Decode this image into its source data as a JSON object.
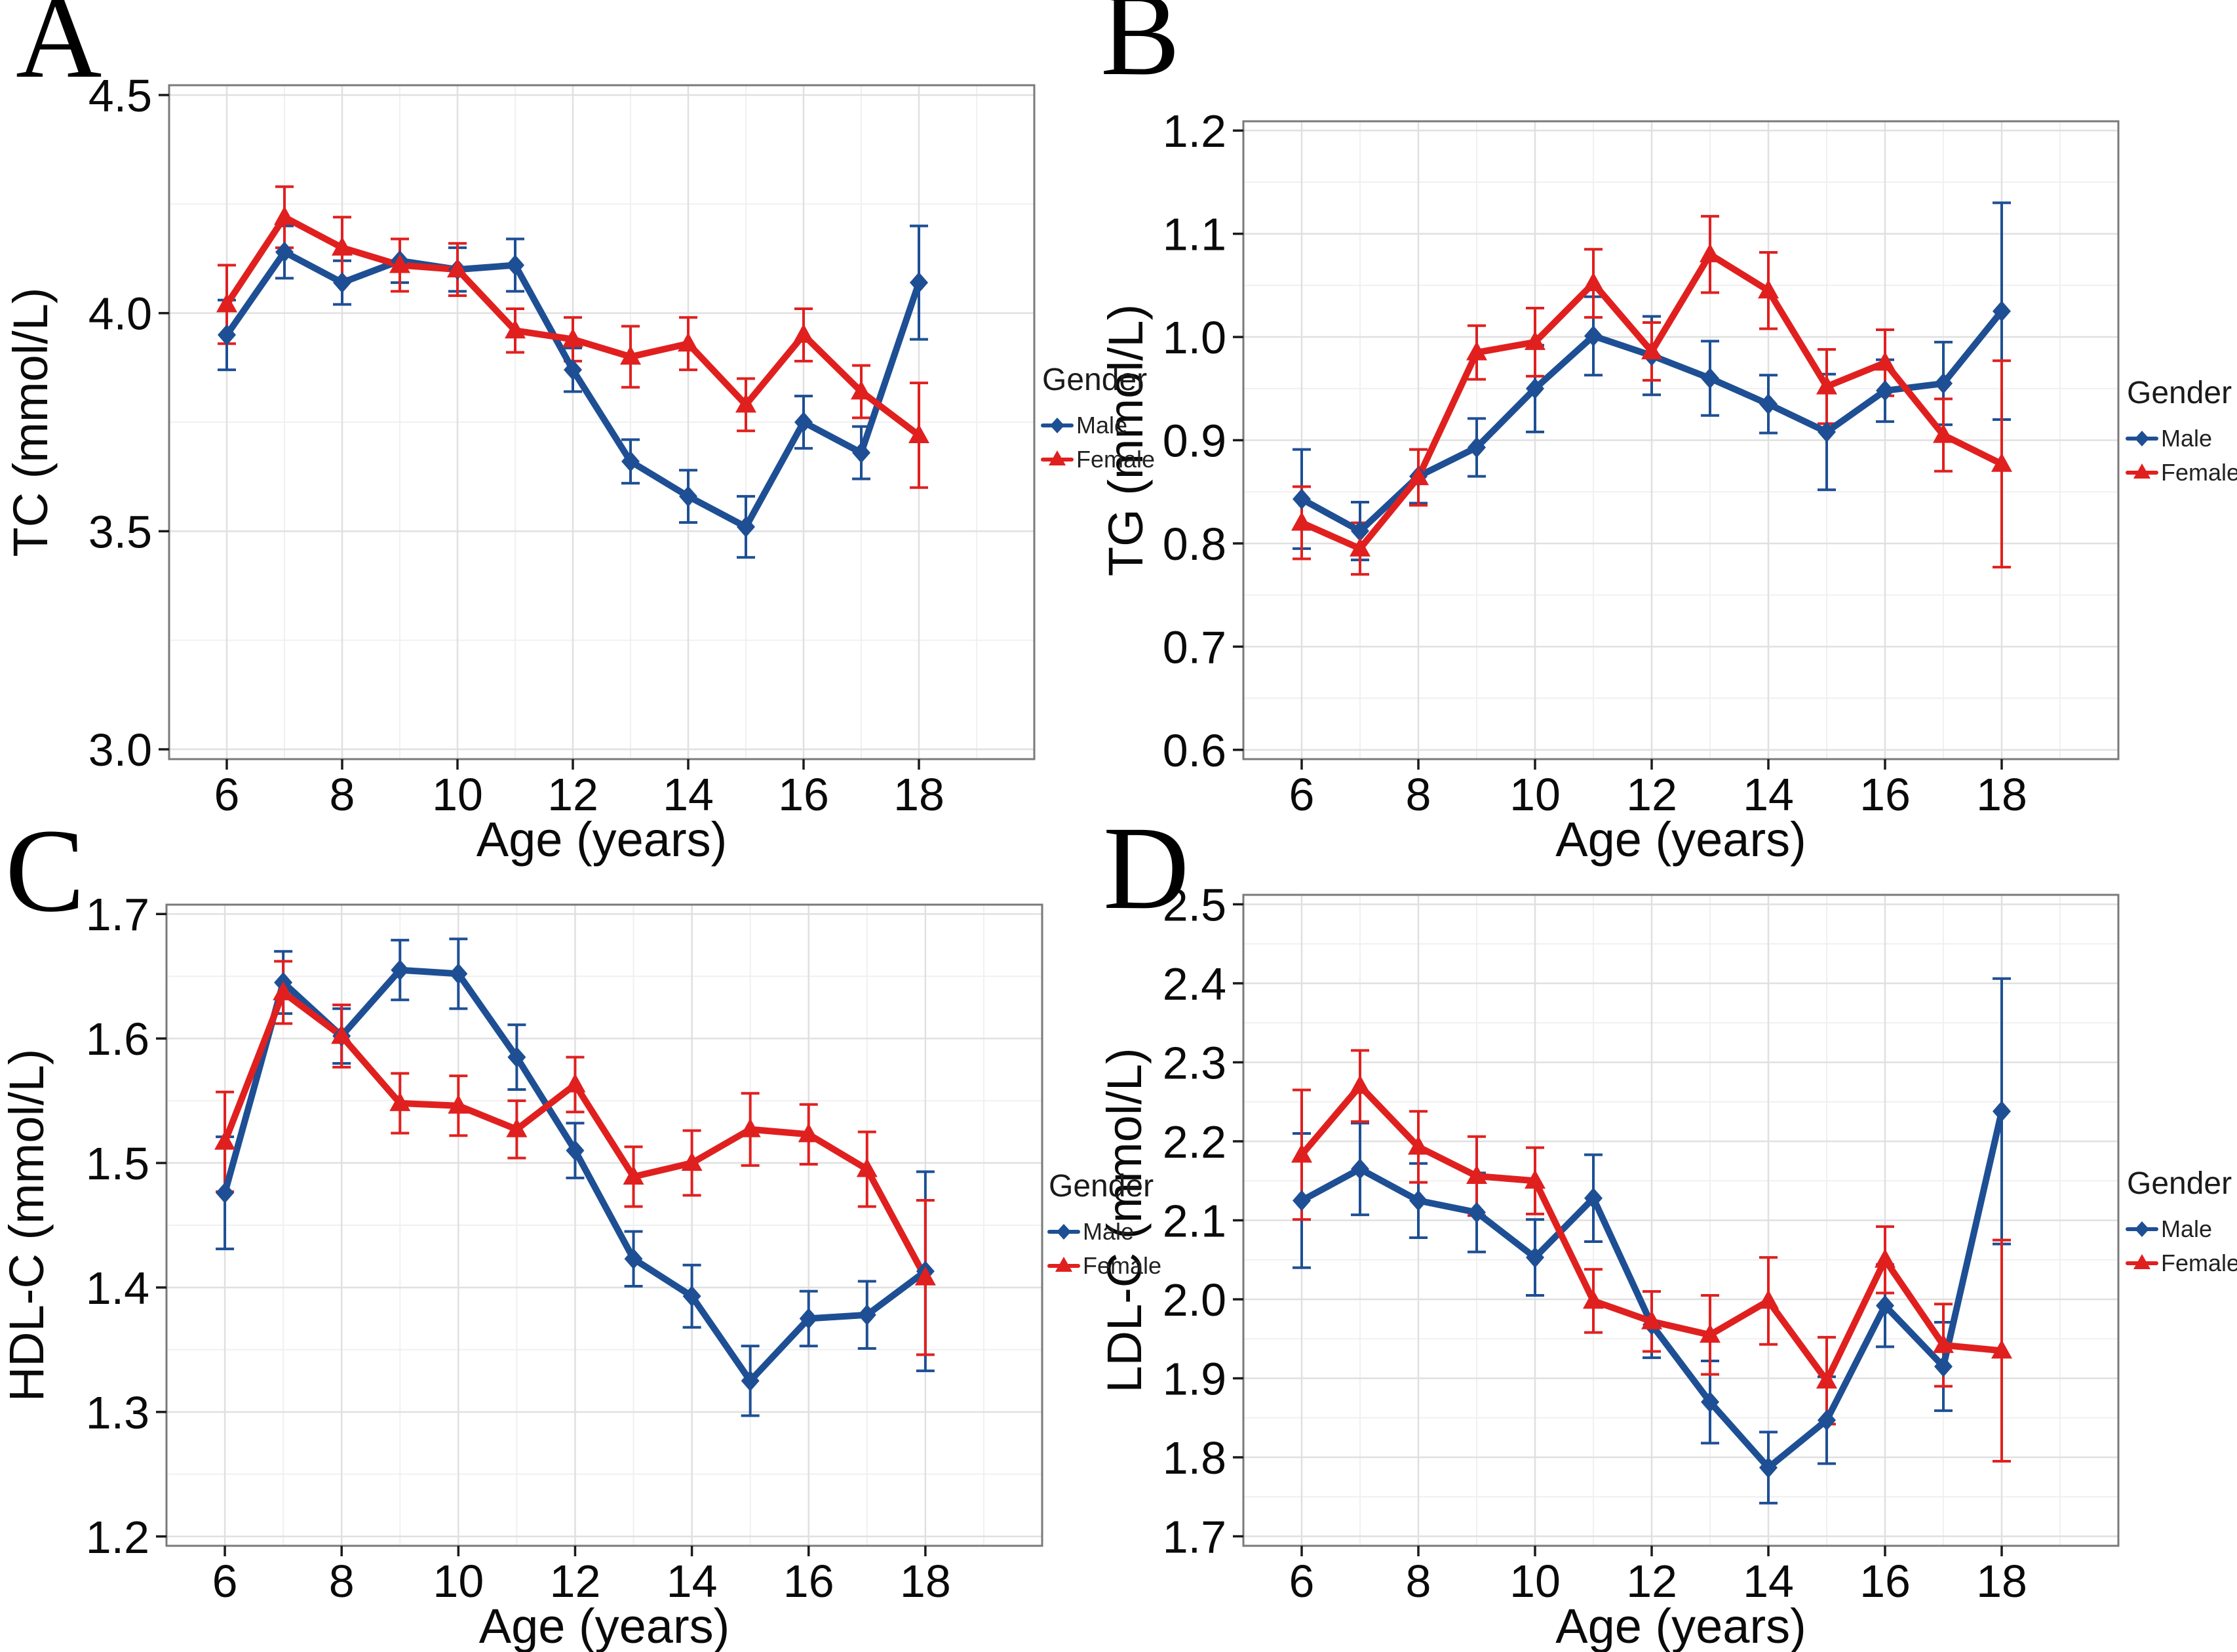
{
  "legend": {
    "title": "Gender",
    "items": [
      {
        "label": "Male",
        "color": "#1e4f94",
        "marker": "diamond"
      },
      {
        "label": "Female",
        "color": "#e0201f",
        "marker": "triangle"
      }
    ]
  },
  "style": {
    "background": "#ffffff",
    "grid_major": "#e0e0e0",
    "grid_minor": "#f0f0f0",
    "panel_border": "#7a7a7a",
    "tick_color": "#1a1a1a",
    "text_color": "#0a0a0a"
  },
  "chart_data": [
    {
      "panel": "A",
      "type": "line",
      "title": "",
      "xlabel": "Age (years)",
      "ylabel": "TC (mmol/L)",
      "x": [
        6,
        7,
        8,
        9,
        10,
        11,
        12,
        13,
        14,
        15,
        16,
        17,
        18
      ],
      "xlim": [
        5,
        20
      ],
      "xticks": [
        6,
        8,
        10,
        12,
        14,
        16,
        18
      ],
      "xminor": [
        7,
        9,
        11,
        13,
        15,
        17,
        19
      ],
      "ylim": [
        3.0,
        4.5
      ],
      "yticks": [
        3.0,
        3.5,
        4.0,
        4.5
      ],
      "grid": true,
      "legend_position": "right",
      "layout": {
        "l": 258,
        "t": 130,
        "r": 1578,
        "b": 1158,
        "tyx": 72
      },
      "series": [
        {
          "name": "Male",
          "color": "#1e4f94",
          "marker": "diamond",
          "values": [
            3.95,
            4.14,
            4.07,
            4.12,
            4.1,
            4.11,
            3.87,
            3.66,
            3.58,
            3.51,
            3.75,
            3.68,
            4.07
          ],
          "errors": [
            0.08,
            0.06,
            0.05,
            0.05,
            0.05,
            0.06,
            0.05,
            0.05,
            0.06,
            0.07,
            0.06,
            0.06,
            0.13
          ]
        },
        {
          "name": "Female",
          "color": "#e0201f",
          "marker": "triangle",
          "values": [
            4.02,
            4.22,
            4.15,
            4.11,
            4.1,
            3.96,
            3.94,
            3.9,
            3.93,
            3.79,
            3.95,
            3.82,
            3.72
          ],
          "errors": [
            0.09,
            0.07,
            0.07,
            0.06,
            0.06,
            0.05,
            0.05,
            0.07,
            0.06,
            0.06,
            0.06,
            0.06,
            0.12
          ]
        }
      ]
    },
    {
      "panel": "B",
      "type": "line",
      "title": "",
      "xlabel": "Age (years)",
      "ylabel": "TG (mmol/L)",
      "x": [
        6,
        7,
        8,
        9,
        10,
        11,
        12,
        13,
        14,
        15,
        16,
        17,
        18
      ],
      "xlim": [
        5,
        20
      ],
      "xticks": [
        6,
        8,
        10,
        12,
        14,
        16,
        18
      ],
      "xminor": [
        7,
        9,
        11,
        13,
        15,
        17,
        19
      ],
      "ylim": [
        0.6,
        1.2
      ],
      "yticks": [
        0.6,
        0.7,
        0.8,
        0.9,
        1.0,
        1.1,
        1.2
      ],
      "grid": true,
      "legend_position": "right",
      "layout": {
        "l": 190,
        "t": 185,
        "r": 1525,
        "b": 1158,
        "tyx": 36
      },
      "series": [
        {
          "name": "Male",
          "color": "#1e4f94",
          "marker": "diamond",
          "values": [
            0.843,
            0.812,
            0.865,
            0.893,
            0.95,
            1.001,
            0.982,
            0.96,
            0.935,
            0.908,
            0.948,
            0.955,
            1.025
          ],
          "errors": [
            0.048,
            0.028,
            0.026,
            0.028,
            0.042,
            0.038,
            0.038,
            0.036,
            0.028,
            0.056,
            0.03,
            0.04,
            0.105
          ]
        },
        {
          "name": "Female",
          "color": "#e0201f",
          "marker": "triangle",
          "values": [
            0.82,
            0.795,
            0.864,
            0.985,
            0.995,
            1.052,
            0.986,
            1.08,
            1.045,
            0.952,
            0.975,
            0.905,
            0.877
          ],
          "errors": [
            0.035,
            0.025,
            0.027,
            0.026,
            0.033,
            0.033,
            0.028,
            0.037,
            0.037,
            0.036,
            0.032,
            0.035,
            0.1
          ]
        }
      ]
    },
    {
      "panel": "C",
      "type": "line",
      "title": "",
      "xlabel": "Age (years)",
      "ylabel": "HDL-C (mmol/L)",
      "x": [
        6,
        7,
        8,
        9,
        10,
        11,
        12,
        13,
        14,
        15,
        16,
        17,
        18
      ],
      "xlim": [
        5,
        20
      ],
      "xticks": [
        6,
        8,
        10,
        12,
        14,
        16,
        18
      ],
      "xminor": [
        7,
        9,
        11,
        13,
        15,
        17,
        19
      ],
      "ylim": [
        1.2,
        1.7
      ],
      "yticks": [
        1.2,
        1.3,
        1.4,
        1.5,
        1.6,
        1.7
      ],
      "grid": true,
      "legend_position": "right",
      "layout": {
        "l": 254,
        "t": 120,
        "r": 1590,
        "b": 1098,
        "tyx": 66
      },
      "series": [
        {
          "name": "Male",
          "color": "#1e4f94",
          "marker": "diamond",
          "values": [
            1.476,
            1.645,
            1.602,
            1.655,
            1.652,
            1.585,
            1.51,
            1.423,
            1.393,
            1.325,
            1.375,
            1.378,
            1.413
          ],
          "errors": [
            0.045,
            0.025,
            0.022,
            0.024,
            0.028,
            0.026,
            0.022,
            0.022,
            0.025,
            0.028,
            0.022,
            0.027,
            0.08
          ]
        },
        {
          "name": "Female",
          "color": "#e0201f",
          "marker": "triangle",
          "values": [
            1.517,
            1.637,
            1.602,
            1.548,
            1.546,
            1.527,
            1.563,
            1.489,
            1.5,
            1.527,
            1.523,
            1.495,
            1.408
          ],
          "errors": [
            0.04,
            0.025,
            0.025,
            0.024,
            0.024,
            0.023,
            0.022,
            0.024,
            0.026,
            0.029,
            0.024,
            0.03,
            0.062
          ]
        }
      ]
    },
    {
      "panel": "D",
      "type": "line",
      "title": "",
      "xlabel": "Age (years)",
      "ylabel": "LDL-C (mmol/L)",
      "x": [
        6,
        7,
        8,
        9,
        10,
        11,
        12,
        13,
        14,
        15,
        16,
        17,
        18
      ],
      "xlim": [
        5,
        20
      ],
      "xticks": [
        6,
        8,
        10,
        12,
        14,
        16,
        18
      ],
      "xminor": [
        7,
        9,
        11,
        13,
        15,
        17,
        19
      ],
      "ylim": [
        1.7,
        2.5
      ],
      "yticks": [
        1.7,
        1.8,
        1.9,
        2.0,
        2.1,
        2.2,
        2.3,
        2.4,
        2.5
      ],
      "grid": true,
      "legend_position": "right",
      "layout": {
        "l": 190,
        "t": 105,
        "r": 1525,
        "b": 1098,
        "tyx": 34
      },
      "series": [
        {
          "name": "Male",
          "color": "#1e4f94",
          "marker": "diamond",
          "values": [
            2.125,
            2.165,
            2.125,
            2.11,
            2.053,
            2.128,
            1.968,
            1.87,
            1.787,
            1.847,
            1.992,
            1.915,
            2.238
          ],
          "errors": [
            0.085,
            0.058,
            0.047,
            0.05,
            0.048,
            0.055,
            0.042,
            0.052,
            0.045,
            0.055,
            0.052,
            0.056,
            0.168
          ]
        },
        {
          "name": "Female",
          "color": "#e0201f",
          "marker": "triangle",
          "values": [
            2.183,
            2.27,
            2.193,
            2.156,
            2.15,
            1.998,
            1.972,
            1.955,
            1.998,
            1.897,
            2.05,
            1.942,
            1.935
          ],
          "errors": [
            0.082,
            0.045,
            0.045,
            0.05,
            0.042,
            0.04,
            0.038,
            0.05,
            0.055,
            0.055,
            0.042,
            0.052,
            0.14
          ]
        }
      ]
    }
  ]
}
